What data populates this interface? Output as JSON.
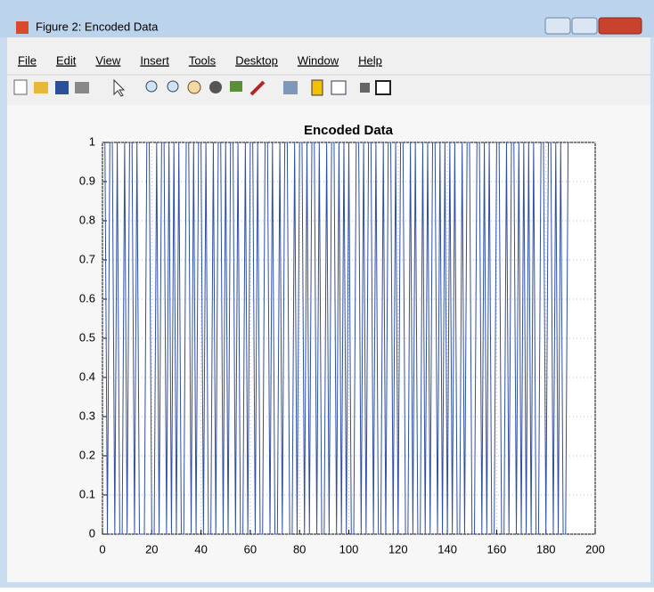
{
  "window": {
    "title": "Figure 2: Encoded Data"
  },
  "menu": [
    "File",
    "Edit",
    "View",
    "Insert",
    "Tools",
    "Desktop",
    "Window",
    "Help"
  ],
  "chart_data": {
    "type": "line",
    "title": "Encoded Data",
    "x": [
      1,
      2,
      3,
      4,
      5,
      6,
      7,
      8,
      9,
      10,
      11,
      12,
      13,
      14,
      15,
      16,
      17,
      18,
      19,
      20,
      21,
      22,
      23,
      24,
      25,
      26,
      27,
      28,
      29,
      30,
      31,
      32,
      33,
      34,
      35,
      36,
      37,
      38,
      39,
      40,
      41,
      42,
      43,
      44,
      45,
      46,
      47,
      48,
      49,
      50,
      51,
      52,
      53,
      54,
      55,
      56,
      57,
      58,
      59,
      60,
      61,
      62,
      63,
      64,
      65,
      66,
      67,
      68,
      69,
      70,
      71,
      72,
      73,
      74,
      75,
      76,
      77,
      78,
      79,
      80,
      81,
      82,
      83,
      84,
      85,
      86,
      87,
      88,
      89,
      90,
      91,
      92,
      93,
      94,
      95,
      96,
      97,
      98,
      99,
      100,
      101,
      102,
      103,
      104,
      105,
      106,
      107,
      108,
      109,
      110,
      111,
      112,
      113,
      114,
      115,
      116,
      117,
      118,
      119,
      120,
      121,
      122,
      123,
      124,
      125,
      126,
      127,
      128,
      129,
      130,
      131,
      132,
      133,
      134,
      135,
      136,
      137,
      138,
      139,
      140,
      141,
      142,
      143,
      144,
      145,
      146,
      147,
      148,
      149,
      150,
      151,
      152,
      153,
      154,
      155,
      156,
      157,
      158,
      159,
      160,
      161,
      162,
      163,
      164,
      165,
      166,
      167,
      168,
      169,
      170,
      171,
      172,
      173,
      174,
      175,
      176,
      177,
      178,
      179,
      180,
      181,
      182,
      183,
      184,
      185,
      186,
      187,
      188,
      189,
      190
    ],
    "series": [
      {
        "color": "#2f4fa3",
        "values": [
          1,
          0,
          1,
          1,
          0,
          1,
          0,
          0,
          1,
          0,
          1,
          1,
          0,
          1,
          0,
          0,
          0,
          1,
          1,
          0,
          0,
          1,
          0,
          1,
          1,
          0,
          1,
          0,
          1,
          0,
          1,
          0,
          0,
          1,
          1,
          0,
          1,
          0,
          1,
          1,
          0,
          1,
          0,
          0,
          1,
          0,
          1,
          1,
          0,
          1,
          0,
          1,
          1,
          0,
          1,
          0,
          0,
          1,
          0,
          1,
          1,
          0,
          1,
          0,
          0,
          1,
          1,
          0,
          1,
          0,
          0,
          1,
          0,
          1,
          1,
          0,
          0,
          1,
          0,
          1,
          1,
          0,
          1,
          0,
          1,
          1,
          0,
          1,
          0,
          0,
          1,
          0,
          1,
          1,
          0,
          1,
          0,
          1,
          0,
          1,
          0,
          0,
          1,
          1,
          0,
          1,
          0,
          1,
          1,
          0,
          1,
          0,
          0,
          1,
          0,
          1,
          1,
          0,
          1,
          0,
          1,
          1,
          0,
          0,
          1,
          0,
          1,
          0,
          0,
          1,
          0,
          1,
          0,
          1,
          1,
          0,
          1,
          0,
          1,
          0,
          1,
          0,
          1,
          0,
          0,
          1,
          0,
          1,
          1,
          0,
          0,
          1,
          1,
          0,
          1,
          0,
          1,
          0,
          0,
          1,
          1,
          0,
          0,
          1,
          0,
          1,
          1,
          0,
          1,
          0,
          1,
          0,
          1,
          0,
          1,
          0,
          0,
          1,
          1,
          0,
          1,
          1,
          0,
          1,
          0,
          1,
          0,
          0,
          1,
          1
        ]
      }
    ],
    "xlim": [
      0,
      200
    ],
    "xticks": [
      0,
      20,
      40,
      60,
      80,
      100,
      120,
      140,
      160,
      180,
      200
    ],
    "ylim": [
      0,
      1
    ],
    "yticks": [
      0,
      0.1,
      0.2,
      0.3,
      0.4,
      0.5,
      0.6,
      0.7,
      0.8,
      0.9,
      1
    ],
    "grid": true
  }
}
